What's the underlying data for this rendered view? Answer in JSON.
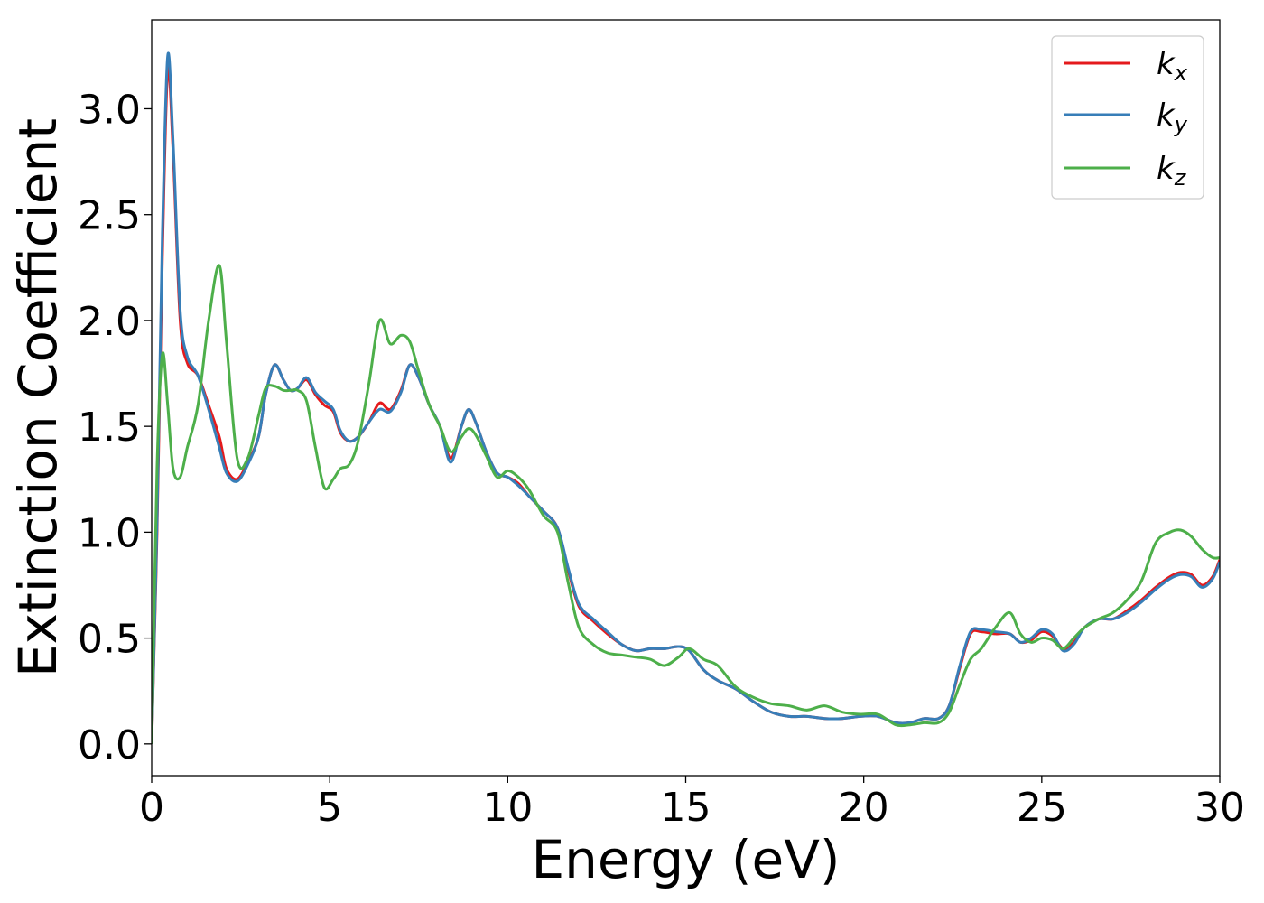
{
  "chart_data": {
    "type": "line",
    "title": "",
    "xlabel": "Energy (eV)",
    "ylabel": "Extinction Coefficient",
    "xlim": [
      0,
      30
    ],
    "ylim": [
      -0.15,
      3.42
    ],
    "xticks": [
      "0",
      "5",
      "10",
      "15",
      "20",
      "25",
      "30"
    ],
    "yticks": [
      "0.0",
      "0.5",
      "1.0",
      "1.5",
      "2.0",
      "2.5",
      "3.0"
    ],
    "grid": false,
    "legend": {
      "placement": "top-right",
      "entries": [
        {
          "base": "k",
          "sub": "x"
        },
        {
          "base": "k",
          "sub": "y"
        },
        {
          "base": "k",
          "sub": "z"
        }
      ]
    },
    "series": [
      {
        "name": "kx",
        "color": "#e41a1c",
        "x": [
          0,
          0.15,
          0.3,
          0.45,
          0.6,
          0.8,
          1.0,
          1.3,
          1.6,
          1.9,
          2.1,
          2.4,
          2.7,
          3.0,
          3.2,
          3.45,
          3.7,
          3.9,
          4.1,
          4.35,
          4.6,
          4.85,
          5.1,
          5.3,
          5.55,
          5.8,
          6.1,
          6.4,
          6.7,
          7.0,
          7.25,
          7.5,
          7.8,
          8.1,
          8.4,
          8.7,
          8.9,
          9.1,
          9.4,
          9.7,
          10.0,
          10.3,
          10.6,
          11.0,
          11.4,
          11.7,
          12.0,
          12.4,
          12.8,
          13.2,
          13.6,
          14.0,
          14.4,
          14.8,
          15.1,
          15.5,
          15.9,
          16.4,
          16.9,
          17.4,
          17.9,
          18.4,
          18.9,
          19.4,
          19.9,
          20.4,
          20.9,
          21.3,
          21.7,
          22.1,
          22.4,
          22.7,
          23.0,
          23.3,
          23.7,
          24.1,
          24.4,
          24.7,
          25.0,
          25.3,
          25.6,
          25.9,
          26.2,
          26.6,
          27.0,
          27.4,
          27.8,
          28.2,
          28.6,
          28.9,
          29.2,
          29.5,
          29.8,
          30.0
        ],
        "y": [
          0.0,
          1.0,
          2.3,
          3.18,
          2.8,
          2.0,
          1.8,
          1.74,
          1.6,
          1.45,
          1.3,
          1.25,
          1.33,
          1.45,
          1.65,
          1.79,
          1.72,
          1.67,
          1.68,
          1.72,
          1.65,
          1.6,
          1.57,
          1.47,
          1.43,
          1.45,
          1.52,
          1.61,
          1.58,
          1.67,
          1.79,
          1.73,
          1.6,
          1.5,
          1.35,
          1.5,
          1.58,
          1.52,
          1.38,
          1.28,
          1.26,
          1.23,
          1.17,
          1.1,
          1.02,
          0.82,
          0.65,
          0.58,
          0.52,
          0.47,
          0.44,
          0.45,
          0.45,
          0.46,
          0.44,
          0.35,
          0.3,
          0.26,
          0.2,
          0.15,
          0.13,
          0.13,
          0.12,
          0.12,
          0.13,
          0.13,
          0.1,
          0.1,
          0.12,
          0.12,
          0.18,
          0.36,
          0.52,
          0.53,
          0.52,
          0.52,
          0.48,
          0.49,
          0.53,
          0.51,
          0.45,
          0.48,
          0.55,
          0.59,
          0.59,
          0.63,
          0.68,
          0.74,
          0.79,
          0.81,
          0.8,
          0.75,
          0.79,
          0.87
        ]
      },
      {
        "name": "ky",
        "color": "#377eb8",
        "x": [
          0,
          0.15,
          0.3,
          0.45,
          0.6,
          0.8,
          1.0,
          1.3,
          1.6,
          1.9,
          2.1,
          2.4,
          2.7,
          3.0,
          3.2,
          3.45,
          3.7,
          3.9,
          4.1,
          4.35,
          4.6,
          4.85,
          5.1,
          5.3,
          5.55,
          5.8,
          6.1,
          6.4,
          6.7,
          7.0,
          7.25,
          7.5,
          7.8,
          8.1,
          8.4,
          8.7,
          8.9,
          9.1,
          9.4,
          9.7,
          10.0,
          10.3,
          10.6,
          11.0,
          11.4,
          11.7,
          12.0,
          12.4,
          12.8,
          13.2,
          13.6,
          14.0,
          14.4,
          14.8,
          15.1,
          15.5,
          15.9,
          16.4,
          16.9,
          17.4,
          17.9,
          18.4,
          18.9,
          19.4,
          19.9,
          20.4,
          20.9,
          21.3,
          21.7,
          22.1,
          22.4,
          22.7,
          23.0,
          23.3,
          23.7,
          24.1,
          24.4,
          24.7,
          25.0,
          25.3,
          25.6,
          25.9,
          26.2,
          26.6,
          27.0,
          27.4,
          27.8,
          28.2,
          28.6,
          28.9,
          29.2,
          29.5,
          29.8,
          30.0
        ],
        "y": [
          0.0,
          1.05,
          2.4,
          3.25,
          2.85,
          2.05,
          1.83,
          1.74,
          1.58,
          1.4,
          1.28,
          1.24,
          1.32,
          1.45,
          1.65,
          1.79,
          1.72,
          1.67,
          1.68,
          1.73,
          1.66,
          1.62,
          1.58,
          1.48,
          1.43,
          1.45,
          1.52,
          1.58,
          1.57,
          1.66,
          1.79,
          1.73,
          1.6,
          1.5,
          1.33,
          1.5,
          1.58,
          1.52,
          1.38,
          1.28,
          1.26,
          1.22,
          1.17,
          1.1,
          1.02,
          0.83,
          0.66,
          0.59,
          0.53,
          0.47,
          0.44,
          0.45,
          0.45,
          0.46,
          0.44,
          0.35,
          0.3,
          0.26,
          0.2,
          0.15,
          0.13,
          0.13,
          0.12,
          0.12,
          0.13,
          0.13,
          0.1,
          0.1,
          0.12,
          0.12,
          0.18,
          0.37,
          0.53,
          0.54,
          0.53,
          0.52,
          0.48,
          0.5,
          0.54,
          0.52,
          0.44,
          0.47,
          0.55,
          0.59,
          0.59,
          0.62,
          0.67,
          0.73,
          0.78,
          0.8,
          0.79,
          0.74,
          0.78,
          0.86
        ]
      },
      {
        "name": "kz",
        "color": "#4daf4a",
        "x": [
          0,
          0.15,
          0.3,
          0.45,
          0.6,
          0.8,
          1.0,
          1.3,
          1.6,
          1.9,
          2.1,
          2.4,
          2.7,
          3.0,
          3.2,
          3.45,
          3.7,
          3.9,
          4.1,
          4.35,
          4.6,
          4.85,
          5.1,
          5.3,
          5.55,
          5.8,
          6.1,
          6.4,
          6.7,
          7.0,
          7.25,
          7.5,
          7.8,
          8.1,
          8.4,
          8.7,
          8.9,
          9.1,
          9.4,
          9.7,
          10.0,
          10.3,
          10.6,
          11.0,
          11.4,
          11.7,
          12.0,
          12.4,
          12.8,
          13.2,
          13.6,
          14.0,
          14.4,
          14.8,
          15.1,
          15.5,
          15.9,
          16.4,
          16.9,
          17.4,
          17.9,
          18.4,
          18.9,
          19.4,
          19.9,
          20.4,
          20.9,
          21.3,
          21.7,
          22.1,
          22.4,
          22.7,
          23.0,
          23.3,
          23.7,
          24.1,
          24.4,
          24.7,
          25.0,
          25.3,
          25.6,
          25.9,
          26.2,
          26.6,
          27.0,
          27.4,
          27.8,
          28.2,
          28.6,
          28.9,
          29.2,
          29.5,
          29.8,
          30.0
        ],
        "y": [
          0.0,
          1.3,
          1.84,
          1.6,
          1.3,
          1.26,
          1.4,
          1.6,
          2.0,
          2.26,
          1.9,
          1.35,
          1.35,
          1.55,
          1.68,
          1.69,
          1.67,
          1.67,
          1.67,
          1.62,
          1.4,
          1.21,
          1.25,
          1.3,
          1.32,
          1.43,
          1.7,
          2.0,
          1.89,
          1.93,
          1.9,
          1.76,
          1.6,
          1.5,
          1.38,
          1.45,
          1.49,
          1.46,
          1.36,
          1.26,
          1.29,
          1.26,
          1.2,
          1.08,
          1.0,
          0.76,
          0.55,
          0.47,
          0.43,
          0.42,
          0.41,
          0.4,
          0.37,
          0.41,
          0.45,
          0.4,
          0.37,
          0.27,
          0.22,
          0.19,
          0.18,
          0.16,
          0.18,
          0.15,
          0.14,
          0.14,
          0.09,
          0.09,
          0.1,
          0.1,
          0.15,
          0.28,
          0.4,
          0.45,
          0.55,
          0.62,
          0.52,
          0.48,
          0.5,
          0.49,
          0.45,
          0.5,
          0.55,
          0.59,
          0.62,
          0.68,
          0.77,
          0.95,
          1.0,
          1.01,
          0.98,
          0.92,
          0.88,
          0.88
        ]
      }
    ]
  }
}
